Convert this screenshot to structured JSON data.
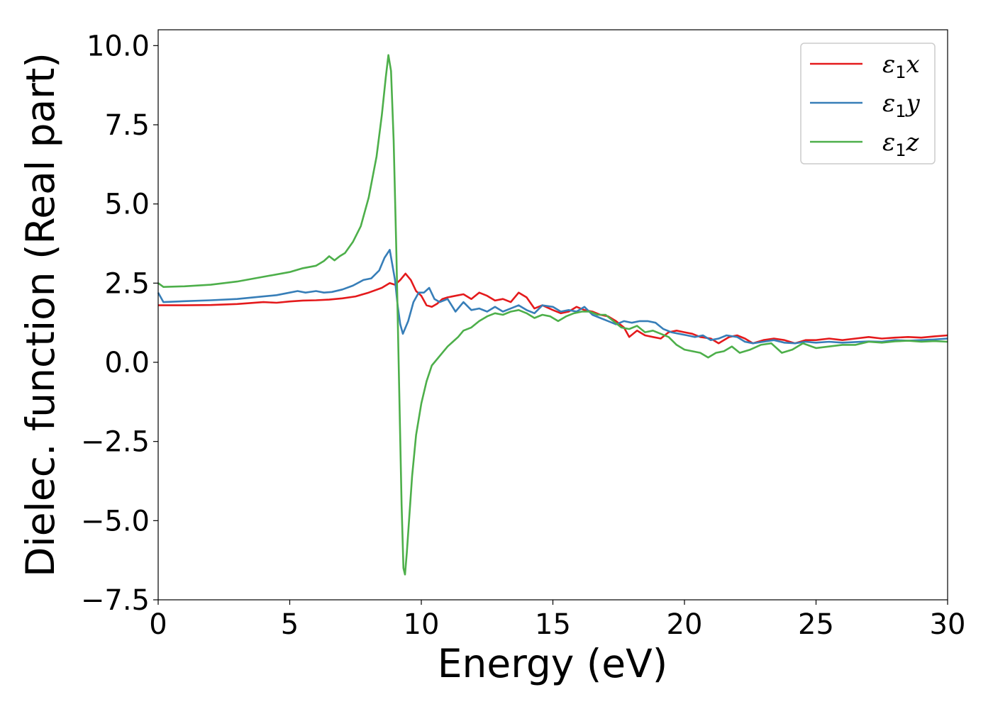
{
  "chart_data": {
    "type": "line",
    "title": "",
    "xlabel": "Energy (eV)",
    "ylabel": "Dielec. function (Real part)",
    "xlim": [
      0,
      30
    ],
    "ylim": [
      -7.5,
      10.5
    ],
    "x_ticks": [
      "0",
      "5",
      "10",
      "15",
      "20",
      "25",
      "30"
    ],
    "y_ticks": [
      "−7.5",
      "−5.0",
      "−2.5",
      "0.0",
      "2.5",
      "5.0",
      "7.5",
      "10.0"
    ],
    "grid": false,
    "legend_position": "top-right",
    "series": [
      {
        "name": "ε₁x",
        "name_base": "ε",
        "name_sub": "1",
        "name_suffix": "x",
        "color": "#e41a1c",
        "points": [
          [
            0,
            1.8
          ],
          [
            1,
            1.8
          ],
          [
            2,
            1.81
          ],
          [
            3,
            1.84
          ],
          [
            4,
            1.9
          ],
          [
            4.5,
            1.88
          ],
          [
            5,
            1.92
          ],
          [
            5.5,
            1.95
          ],
          [
            6,
            1.96
          ],
          [
            6.5,
            1.98
          ],
          [
            7,
            2.02
          ],
          [
            7.5,
            2.08
          ],
          [
            8,
            2.2
          ],
          [
            8.5,
            2.35
          ],
          [
            8.8,
            2.5
          ],
          [
            9.0,
            2.45
          ],
          [
            9.2,
            2.6
          ],
          [
            9.4,
            2.8
          ],
          [
            9.6,
            2.6
          ],
          [
            9.8,
            2.25
          ],
          [
            10.0,
            2.1
          ],
          [
            10.2,
            1.8
          ],
          [
            10.4,
            1.75
          ],
          [
            10.6,
            1.85
          ],
          [
            10.8,
            2.0
          ],
          [
            11.0,
            2.05
          ],
          [
            11.3,
            2.1
          ],
          [
            11.6,
            2.15
          ],
          [
            11.9,
            2.0
          ],
          [
            12.2,
            2.2
          ],
          [
            12.5,
            2.1
          ],
          [
            12.8,
            1.95
          ],
          [
            13.1,
            2.0
          ],
          [
            13.4,
            1.9
          ],
          [
            13.7,
            2.2
          ],
          [
            14.0,
            2.05
          ],
          [
            14.3,
            1.7
          ],
          [
            14.6,
            1.8
          ],
          [
            15.0,
            1.65
          ],
          [
            15.3,
            1.55
          ],
          [
            15.6,
            1.6
          ],
          [
            15.9,
            1.75
          ],
          [
            16.2,
            1.65
          ],
          [
            16.5,
            1.6
          ],
          [
            16.8,
            1.5
          ],
          [
            17.1,
            1.45
          ],
          [
            17.4,
            1.3
          ],
          [
            17.7,
            1.1
          ],
          [
            17.9,
            0.8
          ],
          [
            18.2,
            1.0
          ],
          [
            18.5,
            0.85
          ],
          [
            18.8,
            0.8
          ],
          [
            19.1,
            0.75
          ],
          [
            19.4,
            0.95
          ],
          [
            19.7,
            1.0
          ],
          [
            20.0,
            0.95
          ],
          [
            20.3,
            0.9
          ],
          [
            20.6,
            0.8
          ],
          [
            21.0,
            0.75
          ],
          [
            21.3,
            0.6
          ],
          [
            21.7,
            0.8
          ],
          [
            22.0,
            0.85
          ],
          [
            22.3,
            0.75
          ],
          [
            22.6,
            0.6
          ],
          [
            23.0,
            0.7
          ],
          [
            23.4,
            0.75
          ],
          [
            23.8,
            0.7
          ],
          [
            24.2,
            0.6
          ],
          [
            24.6,
            0.7
          ],
          [
            25.0,
            0.7
          ],
          [
            25.5,
            0.75
          ],
          [
            26.0,
            0.7
          ],
          [
            26.5,
            0.75
          ],
          [
            27.0,
            0.8
          ],
          [
            27.5,
            0.75
          ],
          [
            28.0,
            0.78
          ],
          [
            28.5,
            0.8
          ],
          [
            29.0,
            0.78
          ],
          [
            29.5,
            0.82
          ],
          [
            30,
            0.85
          ]
        ]
      },
      {
        "name": "ε₁y",
        "name_base": "ε",
        "name_sub": "1",
        "name_suffix": "y",
        "color": "#377eb8",
        "points": [
          [
            0,
            2.2
          ],
          [
            0.2,
            1.9
          ],
          [
            1,
            1.93
          ],
          [
            2,
            1.96
          ],
          [
            3,
            2.0
          ],
          [
            4,
            2.08
          ],
          [
            4.5,
            2.12
          ],
          [
            5,
            2.2
          ],
          [
            5.3,
            2.25
          ],
          [
            5.6,
            2.2
          ],
          [
            6,
            2.25
          ],
          [
            6.3,
            2.2
          ],
          [
            6.6,
            2.22
          ],
          [
            7.0,
            2.3
          ],
          [
            7.4,
            2.42
          ],
          [
            7.8,
            2.6
          ],
          [
            8.1,
            2.65
          ],
          [
            8.4,
            2.9
          ],
          [
            8.6,
            3.3
          ],
          [
            8.8,
            3.55
          ],
          [
            9.0,
            2.6
          ],
          [
            9.1,
            1.8
          ],
          [
            9.2,
            1.2
          ],
          [
            9.3,
            0.9
          ],
          [
            9.5,
            1.3
          ],
          [
            9.7,
            1.9
          ],
          [
            9.9,
            2.2
          ],
          [
            10.1,
            2.2
          ],
          [
            10.3,
            2.35
          ],
          [
            10.5,
            2.0
          ],
          [
            10.7,
            1.9
          ],
          [
            11.0,
            2.0
          ],
          [
            11.3,
            1.6
          ],
          [
            11.6,
            1.9
          ],
          [
            11.9,
            1.65
          ],
          [
            12.2,
            1.7
          ],
          [
            12.5,
            1.6
          ],
          [
            12.8,
            1.75
          ],
          [
            13.1,
            1.6
          ],
          [
            13.4,
            1.7
          ],
          [
            13.7,
            1.8
          ],
          [
            14.0,
            1.65
          ],
          [
            14.3,
            1.55
          ],
          [
            14.6,
            1.8
          ],
          [
            15.0,
            1.75
          ],
          [
            15.3,
            1.6
          ],
          [
            15.6,
            1.65
          ],
          [
            15.9,
            1.6
          ],
          [
            16.2,
            1.75
          ],
          [
            16.5,
            1.5
          ],
          [
            16.8,
            1.4
          ],
          [
            17.1,
            1.3
          ],
          [
            17.4,
            1.2
          ],
          [
            17.7,
            1.3
          ],
          [
            18.0,
            1.25
          ],
          [
            18.3,
            1.3
          ],
          [
            18.6,
            1.3
          ],
          [
            18.9,
            1.25
          ],
          [
            19.2,
            1.05
          ],
          [
            19.5,
            0.95
          ],
          [
            19.8,
            0.9
          ],
          [
            20.1,
            0.85
          ],
          [
            20.4,
            0.8
          ],
          [
            20.7,
            0.85
          ],
          [
            21.0,
            0.7
          ],
          [
            21.3,
            0.75
          ],
          [
            21.6,
            0.85
          ],
          [
            22.0,
            0.8
          ],
          [
            22.3,
            0.65
          ],
          [
            22.6,
            0.6
          ],
          [
            23.0,
            0.65
          ],
          [
            23.4,
            0.7
          ],
          [
            23.8,
            0.62
          ],
          [
            24.2,
            0.6
          ],
          [
            24.6,
            0.65
          ],
          [
            25.0,
            0.62
          ],
          [
            25.5,
            0.65
          ],
          [
            26.0,
            0.62
          ],
          [
            26.5,
            0.64
          ],
          [
            27.0,
            0.66
          ],
          [
            27.5,
            0.65
          ],
          [
            28.0,
            0.7
          ],
          [
            28.5,
            0.68
          ],
          [
            29.0,
            0.7
          ],
          [
            29.5,
            0.72
          ],
          [
            30,
            0.75
          ]
        ]
      },
      {
        "name": "ε₁z",
        "name_base": "ε",
        "name_sub": "1",
        "name_suffix": "z",
        "color": "#4daf4a",
        "points": [
          [
            0,
            2.5
          ],
          [
            0.2,
            2.38
          ],
          [
            1,
            2.4
          ],
          [
            2,
            2.45
          ],
          [
            3,
            2.55
          ],
          [
            4,
            2.7
          ],
          [
            5,
            2.85
          ],
          [
            5.5,
            2.97
          ],
          [
            6,
            3.05
          ],
          [
            6.3,
            3.2
          ],
          [
            6.5,
            3.35
          ],
          [
            6.7,
            3.22
          ],
          [
            6.9,
            3.35
          ],
          [
            7.1,
            3.45
          ],
          [
            7.4,
            3.8
          ],
          [
            7.7,
            4.3
          ],
          [
            8.0,
            5.2
          ],
          [
            8.3,
            6.5
          ],
          [
            8.5,
            7.8
          ],
          [
            8.65,
            9.0
          ],
          [
            8.75,
            9.7
          ],
          [
            8.85,
            9.2
          ],
          [
            8.95,
            7.0
          ],
          [
            9.05,
            3.5
          ],
          [
            9.15,
            -0.5
          ],
          [
            9.25,
            -4.5
          ],
          [
            9.32,
            -6.5
          ],
          [
            9.38,
            -6.7
          ],
          [
            9.45,
            -6.0
          ],
          [
            9.55,
            -4.8
          ],
          [
            9.65,
            -3.6
          ],
          [
            9.8,
            -2.3
          ],
          [
            10.0,
            -1.3
          ],
          [
            10.2,
            -0.6
          ],
          [
            10.4,
            -0.1
          ],
          [
            10.6,
            0.1
          ],
          [
            10.8,
            0.3
          ],
          [
            11.0,
            0.5
          ],
          [
            11.2,
            0.65
          ],
          [
            11.4,
            0.8
          ],
          [
            11.6,
            1.0
          ],
          [
            11.9,
            1.1
          ],
          [
            12.2,
            1.3
          ],
          [
            12.5,
            1.45
          ],
          [
            12.8,
            1.55
          ],
          [
            13.1,
            1.5
          ],
          [
            13.4,
            1.6
          ],
          [
            13.7,
            1.65
          ],
          [
            14.0,
            1.55
          ],
          [
            14.3,
            1.4
          ],
          [
            14.6,
            1.5
          ],
          [
            14.9,
            1.45
          ],
          [
            15.2,
            1.3
          ],
          [
            15.5,
            1.45
          ],
          [
            15.8,
            1.55
          ],
          [
            16.1,
            1.6
          ],
          [
            16.4,
            1.6
          ],
          [
            16.7,
            1.5
          ],
          [
            17.0,
            1.5
          ],
          [
            17.3,
            1.3
          ],
          [
            17.6,
            1.1
          ],
          [
            17.9,
            1.05
          ],
          [
            18.2,
            1.15
          ],
          [
            18.5,
            0.95
          ],
          [
            18.8,
            1.0
          ],
          [
            19.1,
            0.9
          ],
          [
            19.4,
            0.8
          ],
          [
            19.7,
            0.55
          ],
          [
            20.0,
            0.4
          ],
          [
            20.3,
            0.35
          ],
          [
            20.6,
            0.3
          ],
          [
            20.9,
            0.15
          ],
          [
            21.2,
            0.3
          ],
          [
            21.5,
            0.35
          ],
          [
            21.8,
            0.5
          ],
          [
            22.1,
            0.3
          ],
          [
            22.5,
            0.4
          ],
          [
            22.9,
            0.55
          ],
          [
            23.3,
            0.6
          ],
          [
            23.7,
            0.3
          ],
          [
            24.1,
            0.4
          ],
          [
            24.5,
            0.6
          ],
          [
            25.0,
            0.45
          ],
          [
            25.5,
            0.5
          ],
          [
            26.0,
            0.55
          ],
          [
            26.5,
            0.55
          ],
          [
            27.0,
            0.65
          ],
          [
            27.5,
            0.62
          ],
          [
            28.0,
            0.66
          ],
          [
            28.5,
            0.68
          ],
          [
            29.0,
            0.65
          ],
          [
            29.5,
            0.67
          ],
          [
            30,
            0.65
          ]
        ]
      }
    ]
  }
}
